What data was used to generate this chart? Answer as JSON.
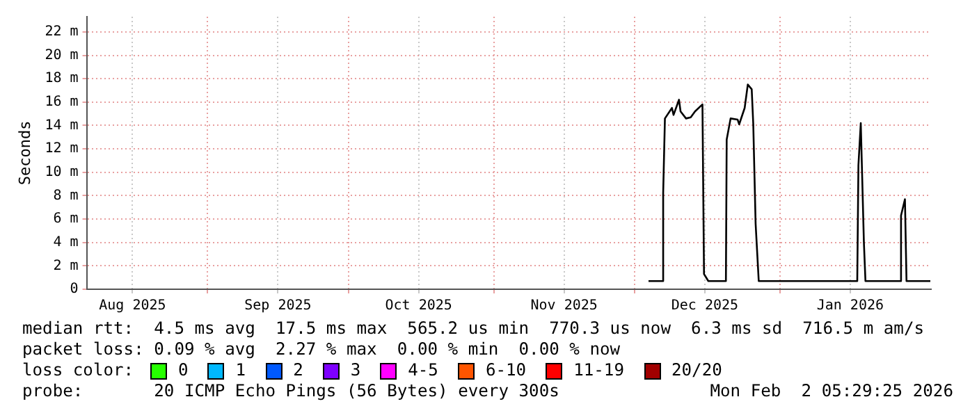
{
  "chart_data": {
    "type": "line",
    "ylabel": "Seconds",
    "legend_title": "loss color:",
    "legend": "bottom",
    "grid": true,
    "marker": "none",
    "line_style": "solid",
    "xlim": [
      "2025-08-06T05:29",
      "2026-02-02T05:29"
    ],
    "xticks": [
      {
        "value": "2025-08-16",
        "label": "Aug 2025"
      },
      {
        "value": "2025-09-01",
        "label": null
      },
      {
        "value": "2025-09-16",
        "label": "Sep 2025"
      },
      {
        "value": "2025-10-01",
        "label": null
      },
      {
        "value": "2025-10-16",
        "label": "Oct 2025"
      },
      {
        "value": "2025-11-01",
        "label": null
      },
      {
        "value": "2025-11-16",
        "label": "Nov 2025"
      },
      {
        "value": "2025-12-01",
        "label": null
      },
      {
        "value": "2025-12-16",
        "label": "Dec 2025"
      },
      {
        "value": "2026-01-01",
        "label": null
      },
      {
        "value": "2026-01-16",
        "label": "Jan 2026"
      }
    ],
    "ylim": [
      0,
      23.3
    ],
    "yticks": [
      0,
      {
        "value": 2,
        "label": "2 m"
      },
      {
        "value": 4,
        "label": "4 m"
      },
      {
        "value": 6,
        "label": "6 m"
      },
      {
        "value": 8,
        "label": "8 m"
      },
      {
        "value": 10,
        "label": "10 m"
      },
      {
        "value": 12,
        "label": "12 m"
      },
      {
        "value": 14,
        "label": "14 m"
      },
      {
        "value": 16,
        "label": "16 m"
      },
      {
        "value": 18,
        "label": "18 m"
      },
      {
        "value": 20,
        "label": "20 m"
      },
      {
        "value": 22,
        "label": "22 m"
      }
    ],
    "x": [
      "2025-12-04",
      "2025-12-07T00:00",
      "2025-12-07T03:00",
      "2025-12-07T12:00",
      "2025-12-09",
      "2025-12-09T08:00",
      "2025-12-10T12:00",
      "2025-12-10T20:00",
      "2025-12-12",
      "2025-12-13",
      "2025-12-13T22:00",
      "2025-12-15T12:00",
      "2025-12-15T20:00",
      "2025-12-16T18:00",
      "2025-12-20T12:00",
      "2025-12-20T16:00",
      "2025-12-21T12:00",
      "2025-12-23",
      "2025-12-23T08:00",
      "2025-12-24T12:00",
      "2025-12-25T04:00",
      "2025-12-26",
      "2025-12-26T08:00",
      "2025-12-26T20:00",
      "2025-12-27T12:00",
      "2026-01-17T12:00",
      "2026-01-17T18:00",
      "2026-01-18T06:00",
      "2026-01-18T22:00",
      "2026-01-19T06:00",
      "2026-01-26T18:00",
      "2026-01-26T20:00",
      "2026-01-27T16:00",
      "2026-01-28",
      "2026-02-02T02:00"
    ],
    "series": [
      {
        "color": "#000000",
        "values": [
          0.7,
          0.7,
          8.2,
          14.6,
          15.5,
          14.9,
          16.2,
          15.2,
          14.6,
          14.7,
          15.2,
          15.8,
          1.3,
          0.7,
          0.7,
          12.8,
          14.6,
          14.5,
          14.1,
          15.5,
          17.5,
          17.1,
          14.1,
          5.6,
          0.7,
          0.7,
          10.6,
          14.2,
          4.0,
          0.7,
          0.7,
          6.3,
          7.7,
          0.7,
          0.7
        ]
      },
      {
        "name": "0",
        "color": "#26ff00",
        "type": "scatter",
        "values": [
          null,
          null,
          null,
          null,
          null,
          null,
          null,
          null,
          null,
          null,
          null,
          null,
          null,
          null,
          null,
          null,
          null,
          null,
          null,
          null,
          null,
          null,
          null,
          null,
          null,
          null,
          null,
          null,
          null,
          null,
          null,
          null,
          null,
          null,
          null
        ]
      },
      {
        "name": "1",
        "color": "#00b8ff",
        "type": "scatter",
        "values": [
          null,
          null,
          null,
          null,
          null,
          null,
          null,
          null,
          null,
          null,
          null,
          null,
          null,
          null,
          null,
          null,
          null,
          null,
          null,
          null,
          null,
          null,
          null,
          null,
          null,
          null,
          null,
          null,
          null,
          null,
          null,
          null,
          null,
          null,
          null
        ]
      },
      {
        "name": "2",
        "color": "#0059ff",
        "type": "scatter",
        "values": [
          null,
          null,
          null,
          null,
          null,
          null,
          null,
          null,
          null,
          null,
          null,
          null,
          null,
          null,
          null,
          null,
          null,
          null,
          null,
          null,
          null,
          null,
          null,
          null,
          null,
          null,
          null,
          null,
          null,
          null,
          null,
          null,
          null,
          null,
          null
        ]
      },
      {
        "name": "3",
        "color": "#7e00ff",
        "type": "scatter",
        "values": [
          null,
          null,
          null,
          null,
          null,
          null,
          null,
          null,
          null,
          null,
          null,
          null,
          null,
          null,
          null,
          null,
          null,
          null,
          null,
          null,
          null,
          null,
          null,
          null,
          null,
          null,
          null,
          null,
          null,
          null,
          null,
          null,
          null,
          null,
          null
        ]
      },
      {
        "name": "4-5",
        "color": "#ff00ff",
        "type": "scatter",
        "values": [
          null,
          null,
          null,
          null,
          null,
          null,
          null,
          null,
          null,
          null,
          null,
          null,
          null,
          null,
          null,
          null,
          null,
          null,
          null,
          null,
          null,
          null,
          null,
          null,
          null,
          null,
          null,
          null,
          null,
          null,
          null,
          null,
          null,
          null,
          null
        ]
      },
      {
        "name": "6-10",
        "color": "#ff5500",
        "type": "scatter",
        "values": [
          null,
          null,
          null,
          null,
          null,
          null,
          null,
          null,
          null,
          null,
          null,
          null,
          null,
          null,
          null,
          null,
          null,
          null,
          null,
          null,
          null,
          null,
          null,
          null,
          null,
          null,
          null,
          null,
          null,
          null,
          null,
          null,
          null,
          null,
          null
        ]
      },
      {
        "name": "11-19",
        "color": "#ff0000",
        "type": "scatter",
        "values": [
          null,
          null,
          null,
          null,
          null,
          null,
          null,
          null,
          null,
          null,
          null,
          null,
          null,
          null,
          null,
          null,
          null,
          null,
          null,
          null,
          null,
          null,
          null,
          null,
          null,
          null,
          null,
          null,
          null,
          null,
          null,
          null,
          null,
          null,
          null
        ]
      },
      {
        "name": "20/20",
        "color": "#a10000",
        "type": "scatter",
        "values": [
          null,
          null,
          null,
          null,
          null,
          null,
          null,
          null,
          null,
          null,
          null,
          null,
          null,
          null,
          null,
          null,
          null,
          null,
          null,
          null,
          null,
          null,
          null,
          null,
          null,
          null,
          null,
          null,
          null,
          null,
          null,
          null,
          null,
          null,
          null
        ]
      }
    ],
    "annotations": [
      "median rtt:  4.5 ms avg  17.5 ms max  565.2 us min  770.3 us now  6.3 ms sd  716.5 m am/s",
      "packet loss: 0.09 % avg  2.27 % max  0.00 % min  0.00 % now",
      "probe:       20 ICMP Echo Pings (56 Bytes) every 300s",
      "Mon Feb  2 05:29:25 2026"
    ]
  }
}
